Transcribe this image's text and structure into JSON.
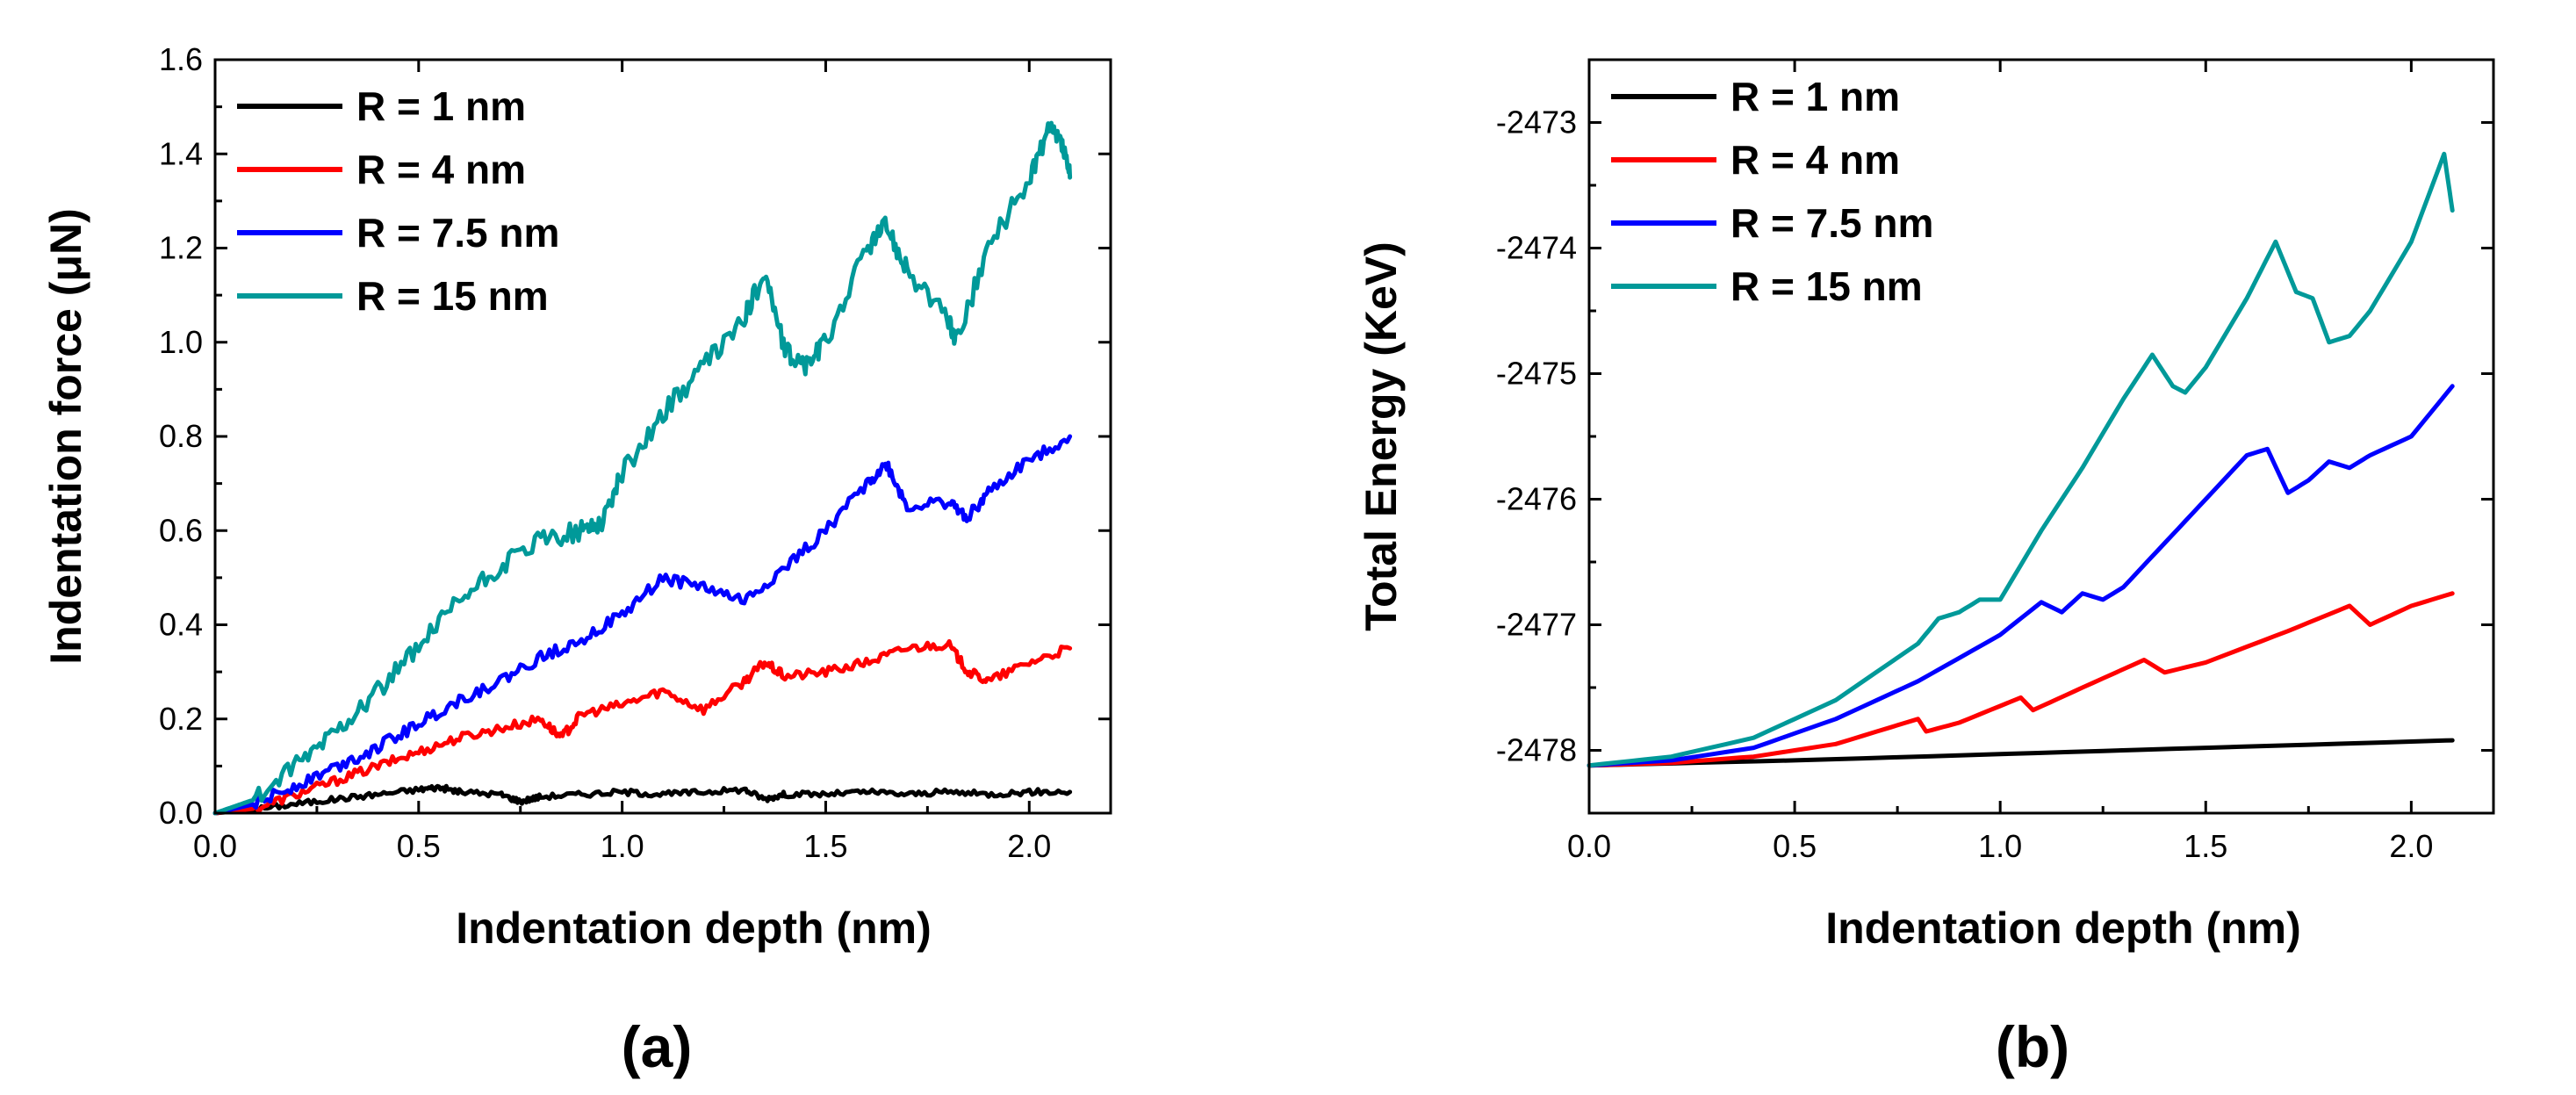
{
  "chart_data": [
    {
      "panel_label": "(a)",
      "type": "line",
      "xlabel": "Indentation depth (nm)",
      "ylabel": "Indentation force (μN)",
      "xlim": [
        0,
        2.2
      ],
      "ylim": [
        0,
        1.6
      ],
      "xticks": [
        0.0,
        0.5,
        1.0,
        1.5,
        2.0
      ],
      "xtick_labels": [
        "0.0",
        "0.5",
        "1.0",
        "1.5",
        "2.0"
      ],
      "yticks": [
        0.0,
        0.2,
        0.4,
        0.6,
        0.8,
        1.0,
        1.2,
        1.4,
        1.6
      ],
      "ytick_labels": [
        "0.0",
        "0.2",
        "0.4",
        "0.6",
        "0.8",
        "1.0",
        "1.2",
        "1.4",
        "1.6"
      ],
      "legend_position": "top-left",
      "series": [
        {
          "name": "R = 1 nm",
          "color": "#000000",
          "noise": 0.006,
          "x": [
            0,
            0.1,
            0.2,
            0.3,
            0.4,
            0.5,
            0.55,
            0.6,
            0.7,
            0.75,
            0.8,
            0.9,
            1.0,
            1.1,
            1.2,
            1.3,
            1.35,
            1.4,
            1.5,
            1.6,
            1.7,
            1.8,
            1.9,
            2.0,
            2.1
          ],
          "y": [
            0,
            0.008,
            0.02,
            0.03,
            0.04,
            0.05,
            0.055,
            0.045,
            0.04,
            0.025,
            0.035,
            0.04,
            0.045,
            0.04,
            0.045,
            0.05,
            0.03,
            0.04,
            0.04,
            0.045,
            0.04,
            0.045,
            0.04,
            0.045,
            0.045
          ]
        },
        {
          "name": "R = 4 nm",
          "color": "#ff0000",
          "noise": 0.01,
          "x": [
            0,
            0.1,
            0.2,
            0.3,
            0.4,
            0.5,
            0.6,
            0.7,
            0.8,
            0.85,
            0.9,
            1.0,
            1.1,
            1.2,
            1.3,
            1.35,
            1.4,
            1.5,
            1.6,
            1.7,
            1.8,
            1.85,
            1.9,
            2.0,
            2.1
          ],
          "y": [
            0,
            0.01,
            0.04,
            0.07,
            0.1,
            0.13,
            0.16,
            0.18,
            0.2,
            0.16,
            0.21,
            0.23,
            0.26,
            0.22,
            0.28,
            0.32,
            0.29,
            0.3,
            0.32,
            0.35,
            0.36,
            0.3,
            0.28,
            0.32,
            0.35
          ]
        },
        {
          "name": "R = 7.5 nm",
          "color": "#0000ff",
          "noise": 0.013,
          "x": [
            0,
            0.1,
            0.2,
            0.3,
            0.4,
            0.5,
            0.6,
            0.7,
            0.8,
            0.9,
            1.0,
            1.1,
            1.2,
            1.3,
            1.4,
            1.5,
            1.6,
            1.65,
            1.7,
            1.8,
            1.85,
            1.9,
            2.0,
            2.1
          ],
          "y": [
            0,
            0.02,
            0.06,
            0.1,
            0.14,
            0.19,
            0.24,
            0.28,
            0.33,
            0.37,
            0.42,
            0.5,
            0.48,
            0.45,
            0.52,
            0.6,
            0.7,
            0.74,
            0.65,
            0.66,
            0.63,
            0.68,
            0.75,
            0.8
          ]
        },
        {
          "name": "R = 15 nm",
          "color": "#009999",
          "noise": 0.022,
          "x": [
            0,
            0.1,
            0.2,
            0.3,
            0.4,
            0.5,
            0.6,
            0.7,
            0.8,
            0.9,
            0.95,
            1.0,
            1.1,
            1.2,
            1.3,
            1.35,
            1.4,
            1.45,
            1.5,
            1.6,
            1.65,
            1.7,
            1.8,
            1.82,
            1.9,
            2.0,
            2.05,
            2.08,
            2.1
          ],
          "y": [
            0,
            0.03,
            0.1,
            0.18,
            0.26,
            0.35,
            0.45,
            0.52,
            0.58,
            0.6,
            0.62,
            0.72,
            0.85,
            0.95,
            1.05,
            1.15,
            0.98,
            0.95,
            1.0,
            1.2,
            1.25,
            1.15,
            1.05,
            1.0,
            1.2,
            1.35,
            1.45,
            1.42,
            1.35
          ]
        }
      ]
    },
    {
      "panel_label": "(b)",
      "type": "line",
      "xlabel": "Indentation depth (nm)",
      "ylabel": "Total Energy (KeV)",
      "xlim": [
        0,
        2.2
      ],
      "ylim": [
        -2478.5,
        -2472.5
      ],
      "xticks": [
        0.0,
        0.5,
        1.0,
        1.5,
        2.0
      ],
      "xtick_labels": [
        "0.0",
        "0.5",
        "1.0",
        "1.5",
        "2.0"
      ],
      "yticks": [
        -2478,
        -2477,
        -2476,
        -2475,
        -2474,
        -2473
      ],
      "ytick_labels": [
        "-2478",
        "-2477",
        "-2476",
        "-2475",
        "-2474",
        "-2473"
      ],
      "legend_position": "top-left",
      "series": [
        {
          "name": "R = 1 nm",
          "color": "#000000",
          "noise": 0,
          "x": [
            0,
            0.5,
            1.0,
            1.5,
            2.0,
            2.1
          ],
          "y": [
            -2478.12,
            -2478.08,
            -2478.03,
            -2477.98,
            -2477.93,
            -2477.92
          ]
        },
        {
          "name": "R = 4 nm",
          "color": "#ff0000",
          "noise": 0,
          "x": [
            0,
            0.2,
            0.4,
            0.6,
            0.8,
            0.82,
            0.9,
            1.05,
            1.08,
            1.2,
            1.35,
            1.4,
            1.5,
            1.7,
            1.85,
            1.9,
            2.0,
            2.1
          ],
          "y": [
            -2478.12,
            -2478.1,
            -2478.05,
            -2477.95,
            -2477.75,
            -2477.85,
            -2477.78,
            -2477.58,
            -2477.68,
            -2477.5,
            -2477.28,
            -2477.38,
            -2477.3,
            -2477.05,
            -2476.85,
            -2477.0,
            -2476.85,
            -2476.75
          ]
        },
        {
          "name": "R = 7.5 nm",
          "color": "#0000ff",
          "noise": 0,
          "x": [
            0,
            0.2,
            0.4,
            0.6,
            0.8,
            1.0,
            1.1,
            1.15,
            1.2,
            1.25,
            1.3,
            1.4,
            1.5,
            1.6,
            1.65,
            1.7,
            1.75,
            1.8,
            1.85,
            1.9,
            2.0,
            2.1
          ],
          "y": [
            -2478.12,
            -2478.08,
            -2477.98,
            -2477.75,
            -2477.45,
            -2477.08,
            -2476.82,
            -2476.9,
            -2476.75,
            -2476.8,
            -2476.7,
            -2476.35,
            -2476.0,
            -2475.65,
            -2475.6,
            -2475.95,
            -2475.85,
            -2475.7,
            -2475.75,
            -2475.65,
            -2475.5,
            -2475.1
          ]
        },
        {
          "name": "R = 15 nm",
          "color": "#009999",
          "noise": 0,
          "x": [
            0,
            0.2,
            0.4,
            0.6,
            0.8,
            0.85,
            0.9,
            0.95,
            1.0,
            1.1,
            1.2,
            1.3,
            1.37,
            1.42,
            1.45,
            1.5,
            1.6,
            1.67,
            1.72,
            1.76,
            1.8,
            1.85,
            1.9,
            2.0,
            2.08,
            2.1
          ],
          "y": [
            -2478.12,
            -2478.05,
            -2477.9,
            -2477.6,
            -2477.15,
            -2476.95,
            -2476.9,
            -2476.8,
            -2476.8,
            -2476.25,
            -2475.75,
            -2475.2,
            -2474.85,
            -2475.1,
            -2475.15,
            -2474.95,
            -2474.4,
            -2473.95,
            -2474.35,
            -2474.4,
            -2474.75,
            -2474.7,
            -2474.5,
            -2473.95,
            -2473.25,
            -2473.7
          ]
        }
      ]
    }
  ]
}
